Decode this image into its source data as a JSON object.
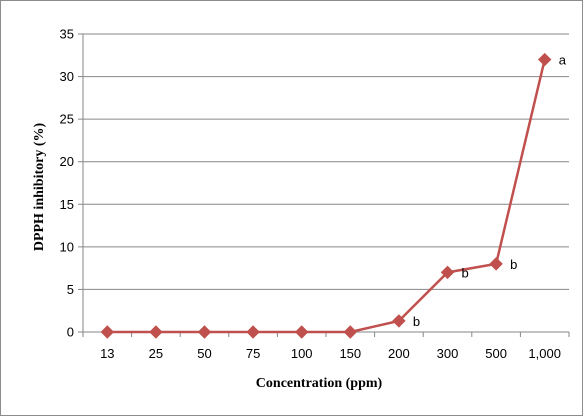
{
  "chart_data": {
    "type": "line",
    "title": "",
    "xlabel": "Concentration (ppm)",
    "ylabel": "DPPH inhibitory  (%)",
    "categories": [
      "13",
      "25",
      "50",
      "75",
      "100",
      "150",
      "200",
      "300",
      "500",
      "1,000"
    ],
    "series": [
      {
        "values": [
          0,
          0,
          0,
          0,
          0,
          0,
          1.3,
          7.0,
          8.0,
          32.0
        ],
        "color": "#c0504d",
        "marker": "diamond",
        "labels": [
          "",
          "",
          "",
          "",
          "",
          "",
          "b",
          "b",
          "b",
          "a"
        ]
      }
    ],
    "ylim": [
      0,
      35
    ],
    "yticks": [
      0,
      5,
      10,
      15,
      20,
      25,
      30,
      35
    ],
    "grid": "horizontal",
    "legend": "none"
  }
}
